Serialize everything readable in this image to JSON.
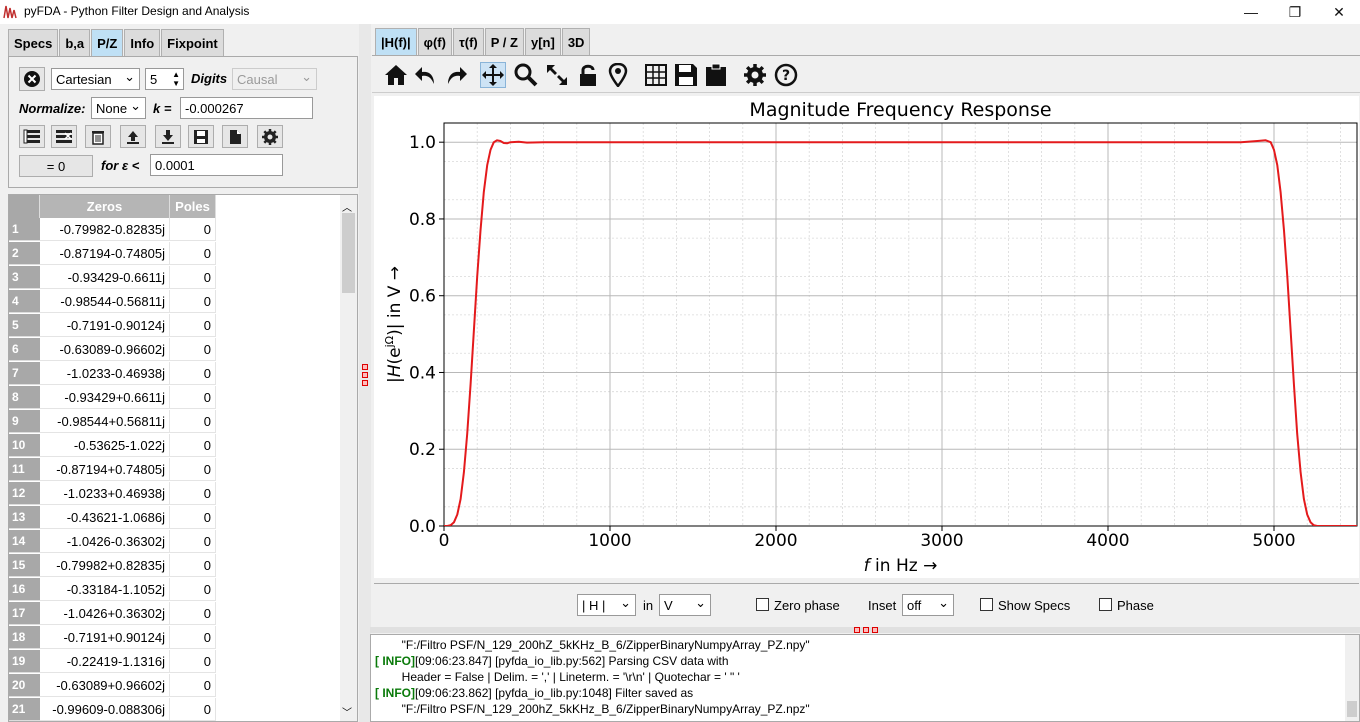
{
  "window": {
    "title": "pyFDA - Python Filter Design and Analysis",
    "minimize_glyph": "—",
    "maximize_glyph": "❐",
    "close_glyph": "✕"
  },
  "left_tabs": [
    {
      "label": "Specs",
      "active": false
    },
    {
      "label": "b,a",
      "active": false
    },
    {
      "label": "P/Z",
      "active": true
    },
    {
      "label": "Info",
      "active": false
    },
    {
      "label": "Fixpoint",
      "active": false
    }
  ],
  "pz_controls": {
    "format": "Cartesian",
    "digits_value": "5",
    "digits_label": "Digits",
    "causal": "Causal",
    "normalize_label": "Normalize:",
    "normalize_value": "None",
    "k_label": "k =",
    "k_value": "-0.000267",
    "eq_zero_button": "= 0",
    "eps_label": "for ε <",
    "eps_value": "0.0001"
  },
  "table": {
    "col_zeros": "Zeros",
    "col_poles": "Poles",
    "rows": [
      {
        "n": "1",
        "zero": "-0.79982-0.82835j",
        "pole": "0"
      },
      {
        "n": "2",
        "zero": "-0.87194-0.74805j",
        "pole": "0"
      },
      {
        "n": "3",
        "zero": "-0.93429-0.6611j",
        "pole": "0"
      },
      {
        "n": "4",
        "zero": "-0.98544-0.56811j",
        "pole": "0"
      },
      {
        "n": "5",
        "zero": "-0.7191-0.90124j",
        "pole": "0"
      },
      {
        "n": "6",
        "zero": "-0.63089-0.96602j",
        "pole": "0"
      },
      {
        "n": "7",
        "zero": "-1.0233-0.46938j",
        "pole": "0"
      },
      {
        "n": "8",
        "zero": "-0.93429+0.6611j",
        "pole": "0"
      },
      {
        "n": "9",
        "zero": "-0.98544+0.56811j",
        "pole": "0"
      },
      {
        "n": "10",
        "zero": "-0.53625-1.022j",
        "pole": "0"
      },
      {
        "n": "11",
        "zero": "-0.87194+0.74805j",
        "pole": "0"
      },
      {
        "n": "12",
        "zero": "-1.0233+0.46938j",
        "pole": "0"
      },
      {
        "n": "13",
        "zero": "-0.43621-1.0686j",
        "pole": "0"
      },
      {
        "n": "14",
        "zero": "-1.0426-0.36302j",
        "pole": "0"
      },
      {
        "n": "15",
        "zero": "-0.79982+0.82835j",
        "pole": "0"
      },
      {
        "n": "16",
        "zero": "-0.33184-1.1052j",
        "pole": "0"
      },
      {
        "n": "17",
        "zero": "-1.0426+0.36302j",
        "pole": "0"
      },
      {
        "n": "18",
        "zero": "-0.7191+0.90124j",
        "pole": "0"
      },
      {
        "n": "19",
        "zero": "-0.22419-1.1316j",
        "pole": "0"
      },
      {
        "n": "20",
        "zero": "-0.63089+0.96602j",
        "pole": "0"
      },
      {
        "n": "21",
        "zero": "-0.99609-0.088306j",
        "pole": "0"
      }
    ]
  },
  "right_tabs": [
    {
      "label": "|H(f)|",
      "active": true
    },
    {
      "label": "φ(f)",
      "active": false
    },
    {
      "label": "τ(f)",
      "active": false
    },
    {
      "label": "P / Z",
      "active": false
    },
    {
      "label": "y[n]",
      "active": false
    },
    {
      "label": "3D",
      "active": false
    }
  ],
  "plot_options": {
    "magnitude_select": "| H |",
    "in_label": "in",
    "unit_select": "V",
    "zero_phase_label": "Zero phase",
    "inset_label": "Inset",
    "inset_value": "off",
    "show_specs_label": "Show Specs",
    "phase_label": "Phase"
  },
  "chart_data": {
    "type": "line",
    "title": "Magnitude Frequency Response",
    "xlabel_italic": "f",
    "xlabel_rest": " in Hz →",
    "ylabel_italic": "H",
    "ylabel_rest": "| in V →",
    "xlim": [
      0,
      5500
    ],
    "ylim": [
      0,
      1.05
    ],
    "xticks": [
      0,
      1000,
      2000,
      3000,
      4000,
      5000
    ],
    "xtick_labels": [
      "0",
      "1000",
      "2000",
      "3000",
      "4000",
      "5000"
    ],
    "yticks": [
      0.0,
      0.2,
      0.4,
      0.6,
      0.8,
      1.0
    ],
    "ytick_labels": [
      "0.0",
      "0.2",
      "0.4",
      "0.6",
      "0.8",
      "1.0"
    ],
    "grid": true,
    "line_color": "#e41a1c",
    "series": [
      {
        "x": [
          0,
          20,
          40,
          60,
          80,
          100,
          120,
          140,
          160,
          180,
          200,
          220,
          240,
          260,
          280,
          300,
          320,
          340,
          360,
          380,
          400,
          450,
          500,
          600,
          800,
          1000,
          2000,
          3000,
          4000,
          4600,
          4800,
          4900,
          4950,
          4980,
          5000,
          5020,
          5040,
          5060,
          5080,
          5100,
          5120,
          5140,
          5160,
          5180,
          5200,
          5220,
          5240,
          5260,
          5280,
          5300,
          5400,
          5500
        ],
        "y": [
          0.0,
          0.0,
          0.002,
          0.01,
          0.03,
          0.07,
          0.14,
          0.24,
          0.37,
          0.51,
          0.65,
          0.77,
          0.87,
          0.94,
          0.98,
          1.0,
          1.005,
          1.003,
          0.998,
          0.997,
          1.0,
          1.001,
          0.999,
          1.0,
          1.0,
          1.0,
          1.0,
          1.0,
          1.0,
          1.0,
          1.0,
          1.003,
          1.005,
          1.0,
          0.98,
          0.94,
          0.87,
          0.77,
          0.65,
          0.51,
          0.37,
          0.24,
          0.14,
          0.07,
          0.03,
          0.01,
          0.002,
          0.0,
          0.0,
          0.0,
          0.0,
          0.0
        ]
      }
    ]
  },
  "log": [
    {
      "tag": "",
      "text": "        \"F:/Filtro PSF/N_129_200hZ_5kKHz_B_6/ZipperBinaryNumpyArray_PZ.npy\""
    },
    {
      "tag": "[ INFO]",
      "text": "[09:06:23.847] [pyfda_io_lib.py:562] Parsing CSV data with"
    },
    {
      "tag": "",
      "text": "        Header = False | Delim. = ',' | Lineterm. = '\\r\\n' | Quotechar = ' \" '"
    },
    {
      "tag": "[ INFO]",
      "text": "[09:06:23.862] [pyfda_io_lib.py:1048] Filter saved as"
    },
    {
      "tag": "",
      "text": "        \"F:/Filtro PSF/N_129_200hZ_5kKHz_B_6/ZipperBinaryNumpyArray_PZ.npz\""
    }
  ]
}
